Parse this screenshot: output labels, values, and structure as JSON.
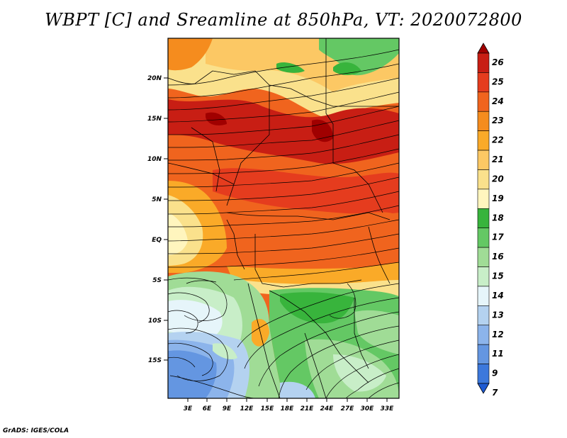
{
  "title": "WBPT [C] and Sreamline at 850hPa, VT: 2020072800",
  "credit": "GrADS: IGES/COLA",
  "map": {
    "lat_labels": [
      "20N",
      "15N",
      "10N",
      "5N",
      "EQ",
      "5S",
      "10S",
      "15S"
    ],
    "lon_labels": [
      "3E",
      "6E",
      "9E",
      "12E",
      "15E",
      "18E",
      "21E",
      "24E",
      "27E",
      "30E",
      "33E"
    ]
  },
  "colorbar": {
    "labels": [
      "26",
      "25",
      "24",
      "23",
      "22",
      "21",
      "20",
      "19",
      "18",
      "17",
      "16",
      "15",
      "14",
      "13",
      "12",
      "11",
      "9",
      "7"
    ],
    "colors": [
      "#a00000",
      "#c81e14",
      "#e53c1e",
      "#f0641e",
      "#f58c1e",
      "#faaa28",
      "#fcc864",
      "#fae18c",
      "#fff5be",
      "#38b43c",
      "#64c864",
      "#a0dc96",
      "#c8eec8",
      "#e6f5fa",
      "#b4d2f0",
      "#8cb4eb",
      "#6496e1",
      "#3c78dc",
      "#1e5ad2"
    ]
  }
}
